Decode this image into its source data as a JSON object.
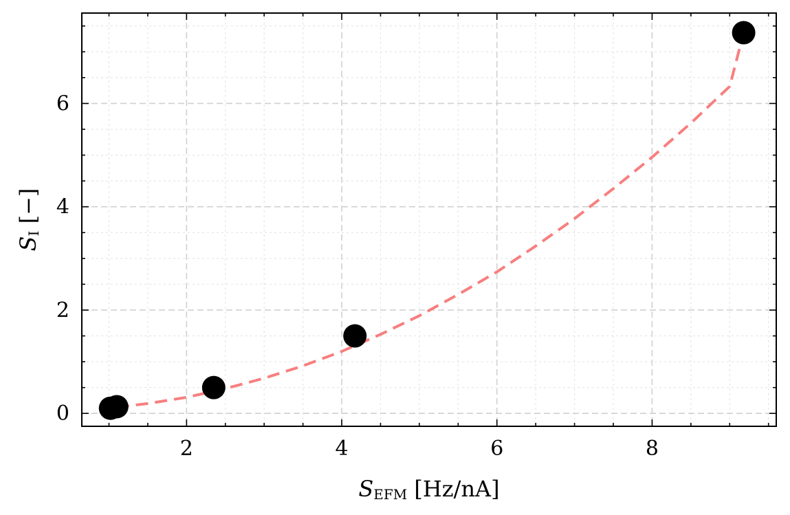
{
  "chart_data": {
    "type": "scatter",
    "xlabel": {
      "symbol": "S",
      "subscript": "EFM",
      "unit": " [Hz/nA]"
    },
    "ylabel": {
      "symbol": "S",
      "subscript": "I",
      "unit": " [−]"
    },
    "xlim": [
      0.65,
      9.6
    ],
    "ylim": [
      -0.25,
      7.75
    ],
    "xticks": [
      2,
      4,
      6,
      8
    ],
    "yticks": [
      0,
      2,
      4,
      6
    ],
    "x_minor_step": 0.5,
    "y_minor_step": 0.5,
    "grid": true,
    "series": [
      {
        "kind": "points",
        "x": [
          1.02,
          1.1,
          2.35,
          4.17,
          9.18
        ],
        "y": [
          0.1,
          0.13,
          0.5,
          1.5,
          7.37
        ],
        "color": "#000000"
      },
      {
        "kind": "fit",
        "style": "dashed",
        "color": "#f77f7f",
        "x": [
          1.1,
          1.5,
          2.0,
          2.5,
          3.0,
          3.5,
          4.0,
          4.5,
          5.0,
          5.5,
          6.0,
          6.5,
          7.0,
          7.5,
          8.0,
          8.5,
          9.0,
          9.18
        ],
        "y": [
          0.12,
          0.19,
          0.31,
          0.48,
          0.68,
          0.92,
          1.2,
          1.53,
          1.89,
          2.3,
          2.74,
          3.24,
          3.77,
          4.35,
          4.96,
          5.62,
          6.33,
          7.37
        ]
      }
    ]
  }
}
